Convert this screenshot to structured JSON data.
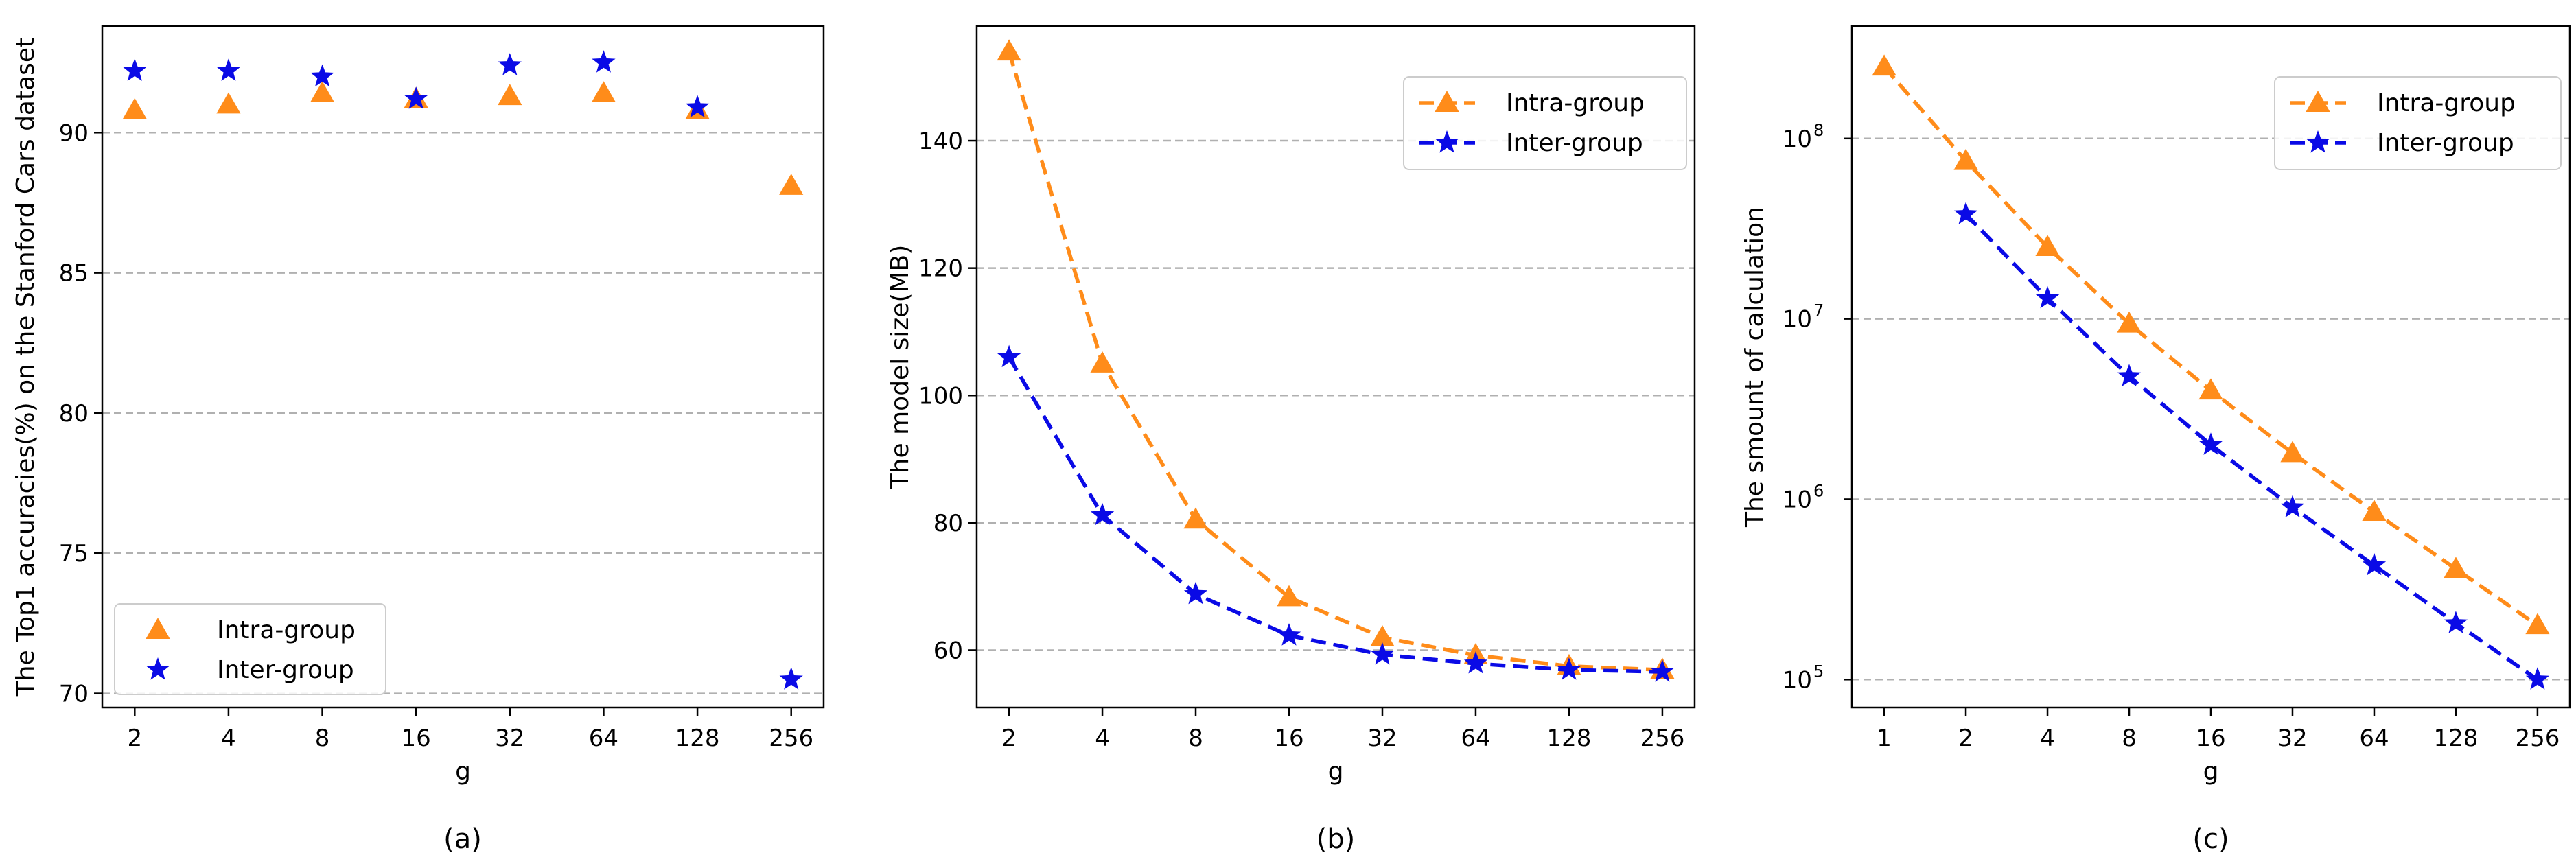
{
  "chart_data": [
    {
      "type": "scatter",
      "caption": "(a)",
      "xlabel": "g",
      "ylabel": "The Top1 accuracies(%) on the Stanford Cars dataset",
      "categories": [
        "2",
        "4",
        "8",
        "16",
        "32",
        "64",
        "128",
        "256"
      ],
      "ylim": [
        69.5,
        93.8
      ],
      "yscale": "linear",
      "yticks": [
        70,
        75,
        80,
        85,
        90
      ],
      "ytick_labels": [
        "70",
        "75",
        "80",
        "85",
        "90"
      ],
      "grid": "y-dashed",
      "legend_position": "lower-left",
      "series": [
        {
          "name": "Intra-group",
          "marker": "triangle",
          "color": "#ff8c1a",
          "values": [
            90.8,
            91.0,
            91.4,
            91.2,
            91.3,
            91.4,
            90.8,
            88.1
          ]
        },
        {
          "name": "Inter-group",
          "marker": "star",
          "color": "#0a0ae6",
          "values": [
            92.2,
            92.2,
            92.0,
            91.2,
            92.4,
            92.5,
            90.9,
            70.5
          ]
        }
      ]
    },
    {
      "type": "line",
      "caption": "(b)",
      "xlabel": "g",
      "ylabel": "The model size(MB)",
      "categories": [
        "2",
        "4",
        "8",
        "16",
        "32",
        "64",
        "128",
        "256"
      ],
      "ylim": [
        51,
        158
      ],
      "yscale": "linear",
      "yticks": [
        60,
        80,
        100,
        120,
        140
      ],
      "ytick_labels": [
        "60",
        "80",
        "100",
        "120",
        "140"
      ],
      "grid": "y-dashed",
      "legend_position": "top-right",
      "series": [
        {
          "name": "Intra-group",
          "marker": "triangle",
          "color": "#ff8c1a",
          "values": [
            154,
            105,
            80.5,
            68.3,
            62.0,
            59.2,
            57.5,
            56.9
          ]
        },
        {
          "name": "Inter-group",
          "marker": "star",
          "color": "#0a0ae6",
          "values": [
            106,
            81.2,
            68.8,
            62.3,
            59.3,
            57.9,
            56.9,
            56.6
          ]
        }
      ]
    },
    {
      "type": "line",
      "caption": "(c)",
      "xlabel": "g",
      "ylabel": "The smount of calculation",
      "categories": [
        "1",
        "2",
        "4",
        "8",
        "16",
        "32",
        "64",
        "128",
        "256"
      ],
      "ylim": [
        70000,
        420000000
      ],
      "yscale": "log",
      "yticks": [
        100000,
        1000000,
        10000000,
        100000000
      ],
      "ytick_labels": [
        {
          "base": "10",
          "exp": "5"
        },
        {
          "base": "10",
          "exp": "6"
        },
        {
          "base": "10",
          "exp": "7"
        },
        {
          "base": "10",
          "exp": "8"
        }
      ],
      "grid": "y-dashed",
      "legend_position": "top-right",
      "series": [
        {
          "name": "Intra-group",
          "marker": "triangle",
          "color": "#ff8c1a",
          "values": [
            250000000,
            75000000,
            25000000,
            9400000,
            4000000,
            1800000,
            850000,
            410000,
            200000
          ]
        },
        {
          "name": "Inter-group",
          "marker": "star",
          "color": "#0a0ae6",
          "values": [
            null,
            38000000,
            13000000,
            4800000,
            2000000,
            900000,
            430000,
            205000,
            100000
          ]
        }
      ]
    }
  ]
}
